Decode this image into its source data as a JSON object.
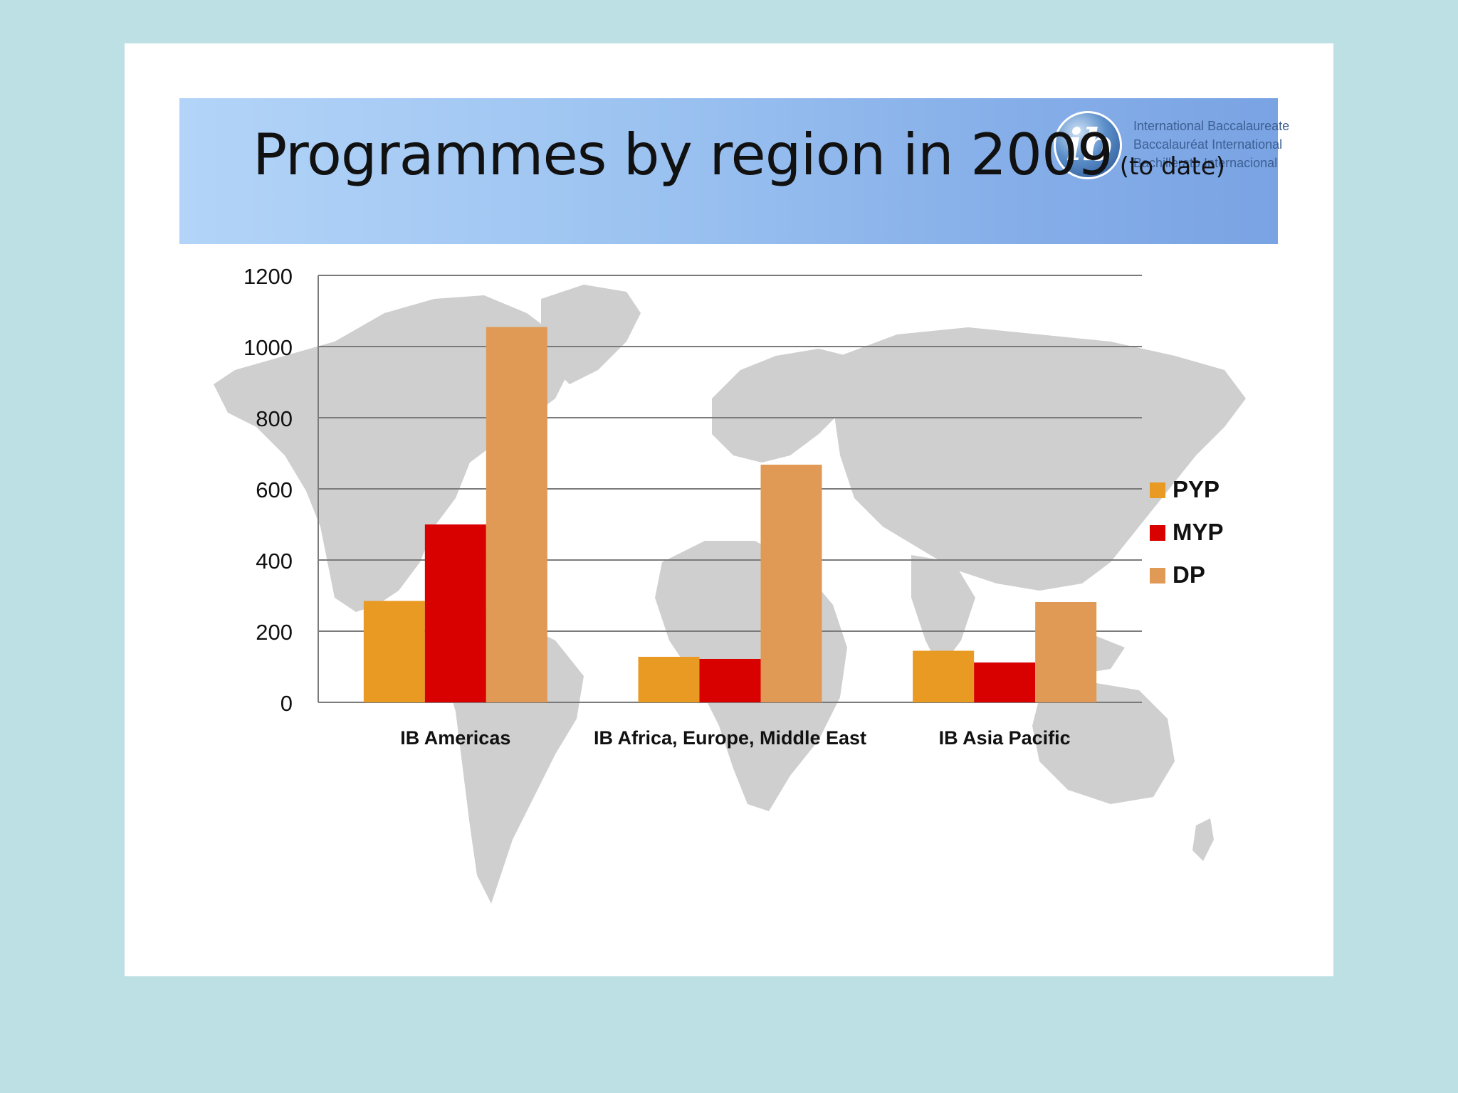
{
  "slide": {
    "title": "Programmes by region in 2009",
    "subtitle": "(to date)",
    "logo": {
      "mark": "ib",
      "lines": [
        "International Baccalaureate",
        "Baccalauréat International",
        "Bachillerato Internacional"
      ]
    }
  },
  "colors": {
    "background": "#bde0e4",
    "header_band": "#8fb8ee",
    "PYP": "#e89a23",
    "MYP": "#d90000",
    "DP": "#e09a55",
    "map": "#cfcfcf"
  },
  "chart_data": {
    "type": "bar",
    "title": "",
    "xlabel": "",
    "ylabel": "",
    "categories": [
      "IB Americas",
      "IB Africa, Europe, Middle East",
      "IB Asia Pacific"
    ],
    "series": [
      {
        "name": "PYP",
        "values": [
          285,
          128,
          145
        ]
      },
      {
        "name": "MYP",
        "values": [
          500,
          122,
          112
        ]
      },
      {
        "name": "DP",
        "values": [
          1055,
          668,
          282
        ]
      }
    ],
    "ylim": [
      0,
      1200
    ],
    "yticks": [
      0,
      200,
      400,
      600,
      800,
      1000,
      1200
    ],
    "grid": true,
    "legend": "right"
  }
}
